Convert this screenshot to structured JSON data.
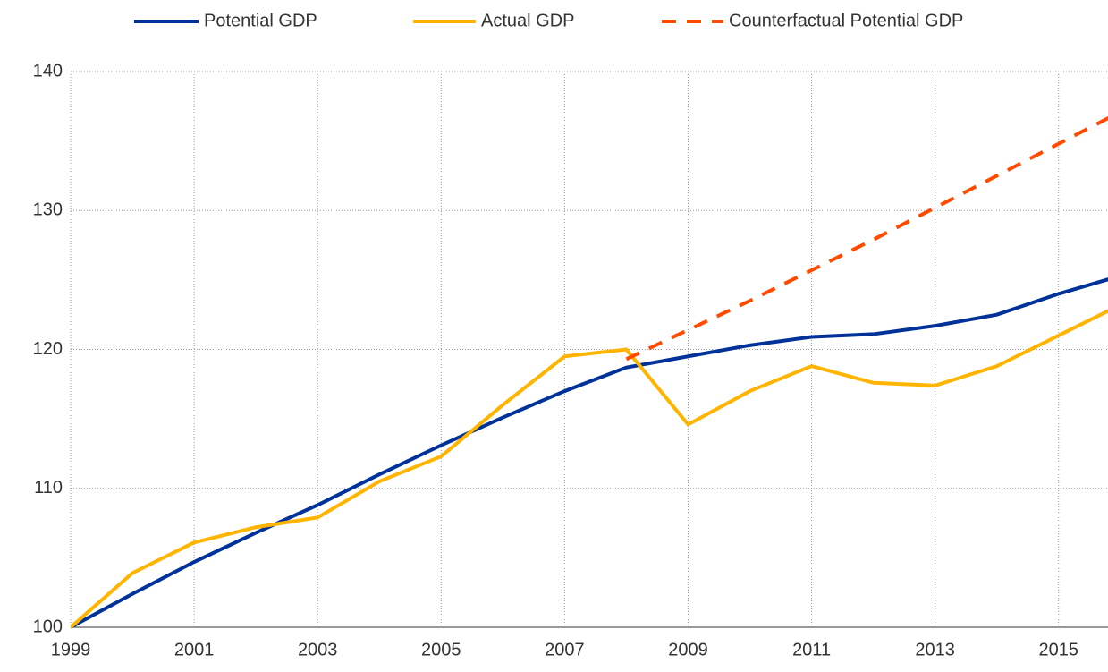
{
  "chart_data": {
    "type": "line",
    "x": [
      1999,
      2000,
      2001,
      2002,
      2003,
      2004,
      2005,
      2006,
      2007,
      2008,
      2009,
      2010,
      2011,
      2012,
      2013,
      2014,
      2015,
      2016
    ],
    "series": [
      {
        "name": "Potential GDP",
        "color": "#003299",
        "style": "solid",
        "values": [
          100,
          102.4,
          104.7,
          106.8,
          108.8,
          111.0,
          113.1,
          115.1,
          117.0,
          118.7,
          119.5,
          120.3,
          120.9,
          121.1,
          121.7,
          122.5,
          124.0,
          125.3
        ]
      },
      {
        "name": "Actual GDP",
        "color": "#ffb400",
        "style": "solid",
        "values": [
          100,
          103.9,
          106.1,
          107.2,
          107.9,
          110.5,
          112.3,
          116.0,
          119.5,
          120.0,
          114.6,
          117.0,
          118.8,
          117.6,
          117.4,
          118.8,
          121.0,
          123.2
        ]
      },
      {
        "name": "Counterfactual Potential GDP",
        "color": "#ff4b00",
        "style": "dashed",
        "values": [
          null,
          null,
          null,
          null,
          null,
          null,
          null,
          null,
          null,
          119.3,
          121.4,
          123.5,
          125.7,
          127.9,
          130.2,
          132.5,
          134.8,
          137.1
        ]
      }
    ],
    "xlim": [
      1999,
      2015.8
    ],
    "xticks": [
      1999,
      2001,
      2003,
      2005,
      2007,
      2009,
      2011,
      2013,
      2015
    ],
    "ylim": [
      100,
      140
    ],
    "yticks": [
      100,
      110,
      120,
      130,
      140
    ],
    "grid": true,
    "legend": "top"
  }
}
